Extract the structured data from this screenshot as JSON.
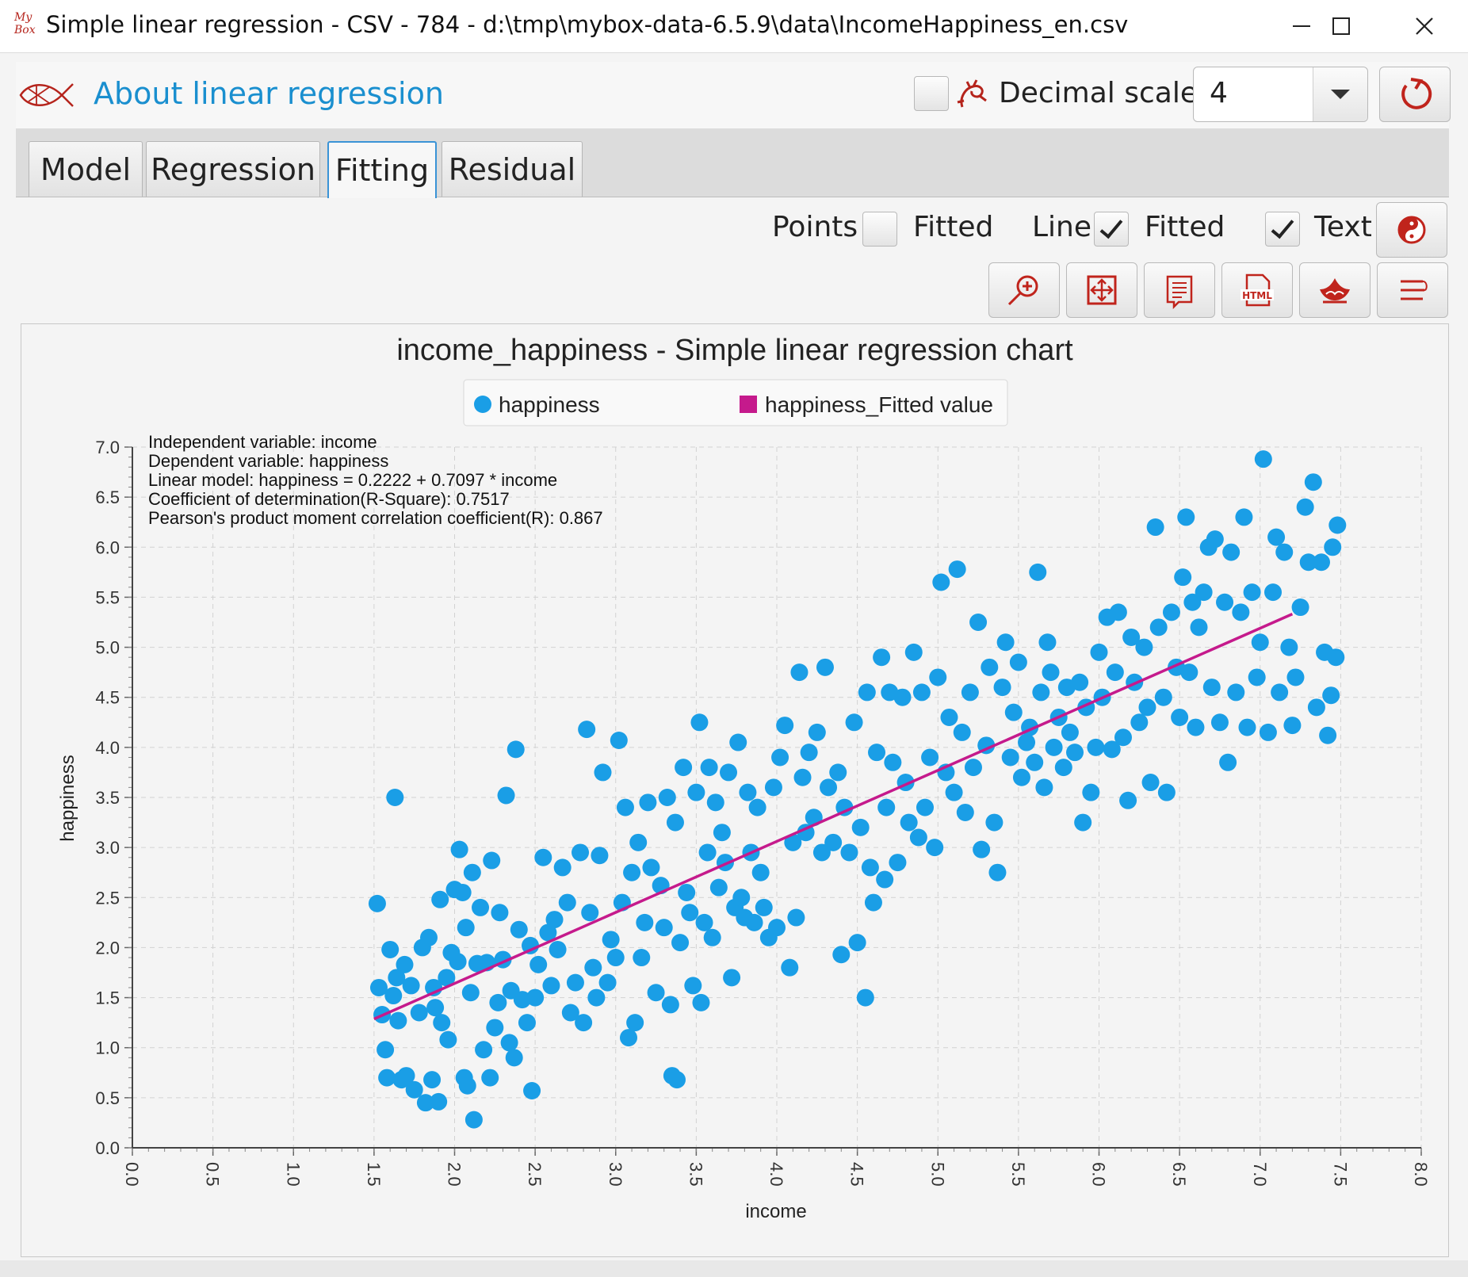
{
  "window": {
    "title": "Simple linear regression - CSV - 784 - d:\\tmp\\mybox-data-6.5.9\\data\\IncomeHappiness_en.csv",
    "logo_text": "My Box"
  },
  "header": {
    "about_label": "About linear regression",
    "decimal_scale_label": "Decimal scale",
    "decimal_scale_value": "4"
  },
  "tabs": [
    {
      "label": "Model"
    },
    {
      "label": "Regression"
    },
    {
      "label": "Fitting"
    },
    {
      "label": "Residual"
    }
  ],
  "options": {
    "points_label": "Points",
    "points_fitted_label": "Fitted",
    "points_checked": false,
    "line_label": "Line",
    "line_fitted_label": "Fitted",
    "line_checked": true,
    "text_label": "Text",
    "text_checked": true
  },
  "colors": {
    "accent": "#1a8fcf",
    "point_color": "#1a9ee6",
    "line_color": "#c51a8c"
  },
  "chart_data": {
    "type": "scatter",
    "title": "income_happiness - Simple linear regression chart",
    "xlabel": "income",
    "ylabel": "happiness",
    "xlim": [
      0,
      8
    ],
    "ylim": [
      0,
      7
    ],
    "xticks": [
      "0.0",
      "0.5",
      "1.0",
      "1.5",
      "2.0",
      "2.5",
      "3.0",
      "3.5",
      "4.0",
      "4.5",
      "5.0",
      "5.5",
      "6.0",
      "6.5",
      "7.0",
      "7.5",
      "8.0"
    ],
    "yticks": [
      "0.0",
      "0.5",
      "1.0",
      "1.5",
      "2.0",
      "2.5",
      "3.0",
      "3.5",
      "4.0",
      "4.5",
      "5.0",
      "5.5",
      "6.0",
      "6.5",
      "7.0"
    ],
    "legend": [
      {
        "name": "happiness",
        "marker": "circle",
        "color": "#1a9ee6"
      },
      {
        "name": "happiness_Fitted value",
        "marker": "square",
        "color": "#c51a8c"
      }
    ],
    "legend_position": "top",
    "grid": true,
    "annotations": [
      "Independent variable: income",
      "Dependent variable: happiness",
      "Linear model: happiness = 0.2222 + 0.7097 * income",
      "Coefficient of determination(R-Square): 0.7517",
      "Pearson's product moment correlation coefficient(R): 0.867"
    ],
    "fitted_line": {
      "x": [
        1.5,
        7.2
      ],
      "y": [
        1.287,
        5.332
      ]
    },
    "series": [
      {
        "name": "happiness",
        "points": [
          [
            1.52,
            2.44
          ],
          [
            1.53,
            1.6
          ],
          [
            1.55,
            1.33
          ],
          [
            1.57,
            0.98
          ],
          [
            1.58,
            0.7
          ],
          [
            1.6,
            1.98
          ],
          [
            1.62,
            1.52
          ],
          [
            1.63,
            3.5
          ],
          [
            1.64,
            1.7
          ],
          [
            1.65,
            1.27
          ],
          [
            1.67,
            0.68
          ],
          [
            1.69,
            1.83
          ],
          [
            1.7,
            0.72
          ],
          [
            1.73,
            1.62
          ],
          [
            1.75,
            0.58
          ],
          [
            1.78,
            1.35
          ],
          [
            1.8,
            2.0
          ],
          [
            1.82,
            0.45
          ],
          [
            1.84,
            2.1
          ],
          [
            1.86,
            0.68
          ],
          [
            1.87,
            1.6
          ],
          [
            1.88,
            1.4
          ],
          [
            1.9,
            0.46
          ],
          [
            1.91,
            2.48
          ],
          [
            1.92,
            1.25
          ],
          [
            1.95,
            1.7
          ],
          [
            1.96,
            1.08
          ],
          [
            1.98,
            1.95
          ],
          [
            2.0,
            2.58
          ],
          [
            2.02,
            1.86
          ],
          [
            2.03,
            2.98
          ],
          [
            2.05,
            2.55
          ],
          [
            2.06,
            0.7
          ],
          [
            2.07,
            2.2
          ],
          [
            2.08,
            0.62
          ],
          [
            2.1,
            1.55
          ],
          [
            2.11,
            2.75
          ],
          [
            2.12,
            0.28
          ],
          [
            2.14,
            1.84
          ],
          [
            2.16,
            2.4
          ],
          [
            2.18,
            0.98
          ],
          [
            2.2,
            1.85
          ],
          [
            2.22,
            0.7
          ],
          [
            2.23,
            2.87
          ],
          [
            2.25,
            1.2
          ],
          [
            2.27,
            1.45
          ],
          [
            2.28,
            2.35
          ],
          [
            2.3,
            1.88
          ],
          [
            2.32,
            3.52
          ],
          [
            2.34,
            1.05
          ],
          [
            2.35,
            1.57
          ],
          [
            2.37,
            0.9
          ],
          [
            2.38,
            3.98
          ],
          [
            2.4,
            2.18
          ],
          [
            2.42,
            1.48
          ],
          [
            2.45,
            1.25
          ],
          [
            2.47,
            2.02
          ],
          [
            2.48,
            0.57
          ],
          [
            2.5,
            1.5
          ],
          [
            2.52,
            1.83
          ],
          [
            2.55,
            2.9
          ],
          [
            2.58,
            2.15
          ],
          [
            2.6,
            1.62
          ],
          [
            2.62,
            2.28
          ],
          [
            2.64,
            1.98
          ],
          [
            2.67,
            2.8
          ],
          [
            2.7,
            2.45
          ],
          [
            2.72,
            1.35
          ],
          [
            2.75,
            1.65
          ],
          [
            2.78,
            2.95
          ],
          [
            2.8,
            1.25
          ],
          [
            2.82,
            4.18
          ],
          [
            2.84,
            2.35
          ],
          [
            2.86,
            1.8
          ],
          [
            2.88,
            1.5
          ],
          [
            2.9,
            2.92
          ],
          [
            2.92,
            3.75
          ],
          [
            2.95,
            1.65
          ],
          [
            2.97,
            2.08
          ],
          [
            3.0,
            1.9
          ],
          [
            3.02,
            4.07
          ],
          [
            3.04,
            2.45
          ],
          [
            3.06,
            3.4
          ],
          [
            3.08,
            1.1
          ],
          [
            3.1,
            2.75
          ],
          [
            3.12,
            1.25
          ],
          [
            3.14,
            3.05
          ],
          [
            3.16,
            1.9
          ],
          [
            3.18,
            2.25
          ],
          [
            3.2,
            3.45
          ],
          [
            3.22,
            2.8
          ],
          [
            3.25,
            1.55
          ],
          [
            3.28,
            2.62
          ],
          [
            3.3,
            2.2
          ],
          [
            3.32,
            3.5
          ],
          [
            3.34,
            1.43
          ],
          [
            3.35,
            0.72
          ],
          [
            3.37,
            3.25
          ],
          [
            3.38,
            0.68
          ],
          [
            3.4,
            2.05
          ],
          [
            3.42,
            3.8
          ],
          [
            3.44,
            2.55
          ],
          [
            3.46,
            2.35
          ],
          [
            3.48,
            1.62
          ],
          [
            3.5,
            3.55
          ],
          [
            3.52,
            4.25
          ],
          [
            3.53,
            1.45
          ],
          [
            3.55,
            2.25
          ],
          [
            3.57,
            2.95
          ],
          [
            3.58,
            3.8
          ],
          [
            3.6,
            2.1
          ],
          [
            3.62,
            3.45
          ],
          [
            3.64,
            2.6
          ],
          [
            3.66,
            3.15
          ],
          [
            3.68,
            2.85
          ],
          [
            3.7,
            3.75
          ],
          [
            3.72,
            1.7
          ],
          [
            3.74,
            2.4
          ],
          [
            3.76,
            4.05
          ],
          [
            3.78,
            2.5
          ],
          [
            3.8,
            2.3
          ],
          [
            3.82,
            3.55
          ],
          [
            3.84,
            2.95
          ],
          [
            3.86,
            2.25
          ],
          [
            3.88,
            3.4
          ],
          [
            3.9,
            2.75
          ],
          [
            3.92,
            2.4
          ],
          [
            3.95,
            2.1
          ],
          [
            3.98,
            3.6
          ],
          [
            4.0,
            2.2
          ],
          [
            4.02,
            3.9
          ],
          [
            4.05,
            4.22
          ],
          [
            4.08,
            1.8
          ],
          [
            4.1,
            3.05
          ],
          [
            4.12,
            2.3
          ],
          [
            4.14,
            4.75
          ],
          [
            4.16,
            3.7
          ],
          [
            4.18,
            3.15
          ],
          [
            4.2,
            3.95
          ],
          [
            4.23,
            3.3
          ],
          [
            4.25,
            4.15
          ],
          [
            4.28,
            2.95
          ],
          [
            4.3,
            4.8
          ],
          [
            4.32,
            3.6
          ],
          [
            4.35,
            3.05
          ],
          [
            4.38,
            3.75
          ],
          [
            4.4,
            1.93
          ],
          [
            4.42,
            3.4
          ],
          [
            4.45,
            2.95
          ],
          [
            4.48,
            4.25
          ],
          [
            4.5,
            2.05
          ],
          [
            4.52,
            3.2
          ],
          [
            4.55,
            1.5
          ],
          [
            4.56,
            4.55
          ],
          [
            4.58,
            2.8
          ],
          [
            4.6,
            2.45
          ],
          [
            4.62,
            3.95
          ],
          [
            4.65,
            4.9
          ],
          [
            4.67,
            2.68
          ],
          [
            4.68,
            3.4
          ],
          [
            4.7,
            4.55
          ],
          [
            4.72,
            3.85
          ],
          [
            4.75,
            2.85
          ],
          [
            4.78,
            4.5
          ],
          [
            4.8,
            3.65
          ],
          [
            4.82,
            3.25
          ],
          [
            4.85,
            4.95
          ],
          [
            4.88,
            3.1
          ],
          [
            4.9,
            4.55
          ],
          [
            4.92,
            3.4
          ],
          [
            4.95,
            3.9
          ],
          [
            4.98,
            3.0
          ],
          [
            5.0,
            4.7
          ],
          [
            5.02,
            5.65
          ],
          [
            5.05,
            3.75
          ],
          [
            5.07,
            4.3
          ],
          [
            5.1,
            3.55
          ],
          [
            5.12,
            5.78
          ],
          [
            5.15,
            4.15
          ],
          [
            5.17,
            3.35
          ],
          [
            5.2,
            4.55
          ],
          [
            5.22,
            3.8
          ],
          [
            5.25,
            5.25
          ],
          [
            5.27,
            2.98
          ],
          [
            5.3,
            4.02
          ],
          [
            5.32,
            4.8
          ],
          [
            5.35,
            3.25
          ],
          [
            5.37,
            2.75
          ],
          [
            5.4,
            4.6
          ],
          [
            5.42,
            5.05
          ],
          [
            5.45,
            3.9
          ],
          [
            5.47,
            4.35
          ],
          [
            5.5,
            4.85
          ],
          [
            5.52,
            3.7
          ],
          [
            5.55,
            4.05
          ],
          [
            5.57,
            4.2
          ],
          [
            5.6,
            3.85
          ],
          [
            5.62,
            5.75
          ],
          [
            5.64,
            4.55
          ],
          [
            5.66,
            3.6
          ],
          [
            5.68,
            5.05
          ],
          [
            5.7,
            4.75
          ],
          [
            5.72,
            4.0
          ],
          [
            5.75,
            4.3
          ],
          [
            5.78,
            3.8
          ],
          [
            5.8,
            4.6
          ],
          [
            5.82,
            4.15
          ],
          [
            5.85,
            3.95
          ],
          [
            5.88,
            4.65
          ],
          [
            5.9,
            3.25
          ],
          [
            5.92,
            4.4
          ],
          [
            5.95,
            3.55
          ],
          [
            5.98,
            4.0
          ],
          [
            6.0,
            4.95
          ],
          [
            6.02,
            4.5
          ],
          [
            6.05,
            5.3
          ],
          [
            6.08,
            3.98
          ],
          [
            6.1,
            4.75
          ],
          [
            6.12,
            5.35
          ],
          [
            6.15,
            4.1
          ],
          [
            6.18,
            3.47
          ],
          [
            6.2,
            5.1
          ],
          [
            6.22,
            4.65
          ],
          [
            6.25,
            4.25
          ],
          [
            6.28,
            5.0
          ],
          [
            6.3,
            4.4
          ],
          [
            6.32,
            3.65
          ],
          [
            6.35,
            6.2
          ],
          [
            6.37,
            5.2
          ],
          [
            6.4,
            4.5
          ],
          [
            6.42,
            3.55
          ],
          [
            6.45,
            5.35
          ],
          [
            6.48,
            4.8
          ],
          [
            6.5,
            4.3
          ],
          [
            6.52,
            5.7
          ],
          [
            6.54,
            6.3
          ],
          [
            6.56,
            4.75
          ],
          [
            6.58,
            5.45
          ],
          [
            6.6,
            4.2
          ],
          [
            6.62,
            5.2
          ],
          [
            6.65,
            5.55
          ],
          [
            6.68,
            6.0
          ],
          [
            6.7,
            4.6
          ],
          [
            6.72,
            6.08
          ],
          [
            6.75,
            4.25
          ],
          [
            6.78,
            5.45
          ],
          [
            6.8,
            3.85
          ],
          [
            6.82,
            5.95
          ],
          [
            6.85,
            4.55
          ],
          [
            6.88,
            5.35
          ],
          [
            6.9,
            6.3
          ],
          [
            6.92,
            4.2
          ],
          [
            6.95,
            5.55
          ],
          [
            6.98,
            4.7
          ],
          [
            7.0,
            5.05
          ],
          [
            7.02,
            6.88
          ],
          [
            7.05,
            4.15
          ],
          [
            7.08,
            5.55
          ],
          [
            7.1,
            6.1
          ],
          [
            7.12,
            4.55
          ],
          [
            7.15,
            5.95
          ],
          [
            7.18,
            5.0
          ],
          [
            7.2,
            4.22
          ],
          [
            7.22,
            4.7
          ],
          [
            7.25,
            5.4
          ],
          [
            7.28,
            6.4
          ],
          [
            7.3,
            5.85
          ],
          [
            7.33,
            6.65
          ],
          [
            7.35,
            4.4
          ],
          [
            7.38,
            5.85
          ],
          [
            7.4,
            4.95
          ],
          [
            7.42,
            4.12
          ],
          [
            7.44,
            4.52
          ],
          [
            7.45,
            6.0
          ],
          [
            7.47,
            4.9
          ],
          [
            7.48,
            6.22
          ]
        ]
      }
    ]
  }
}
